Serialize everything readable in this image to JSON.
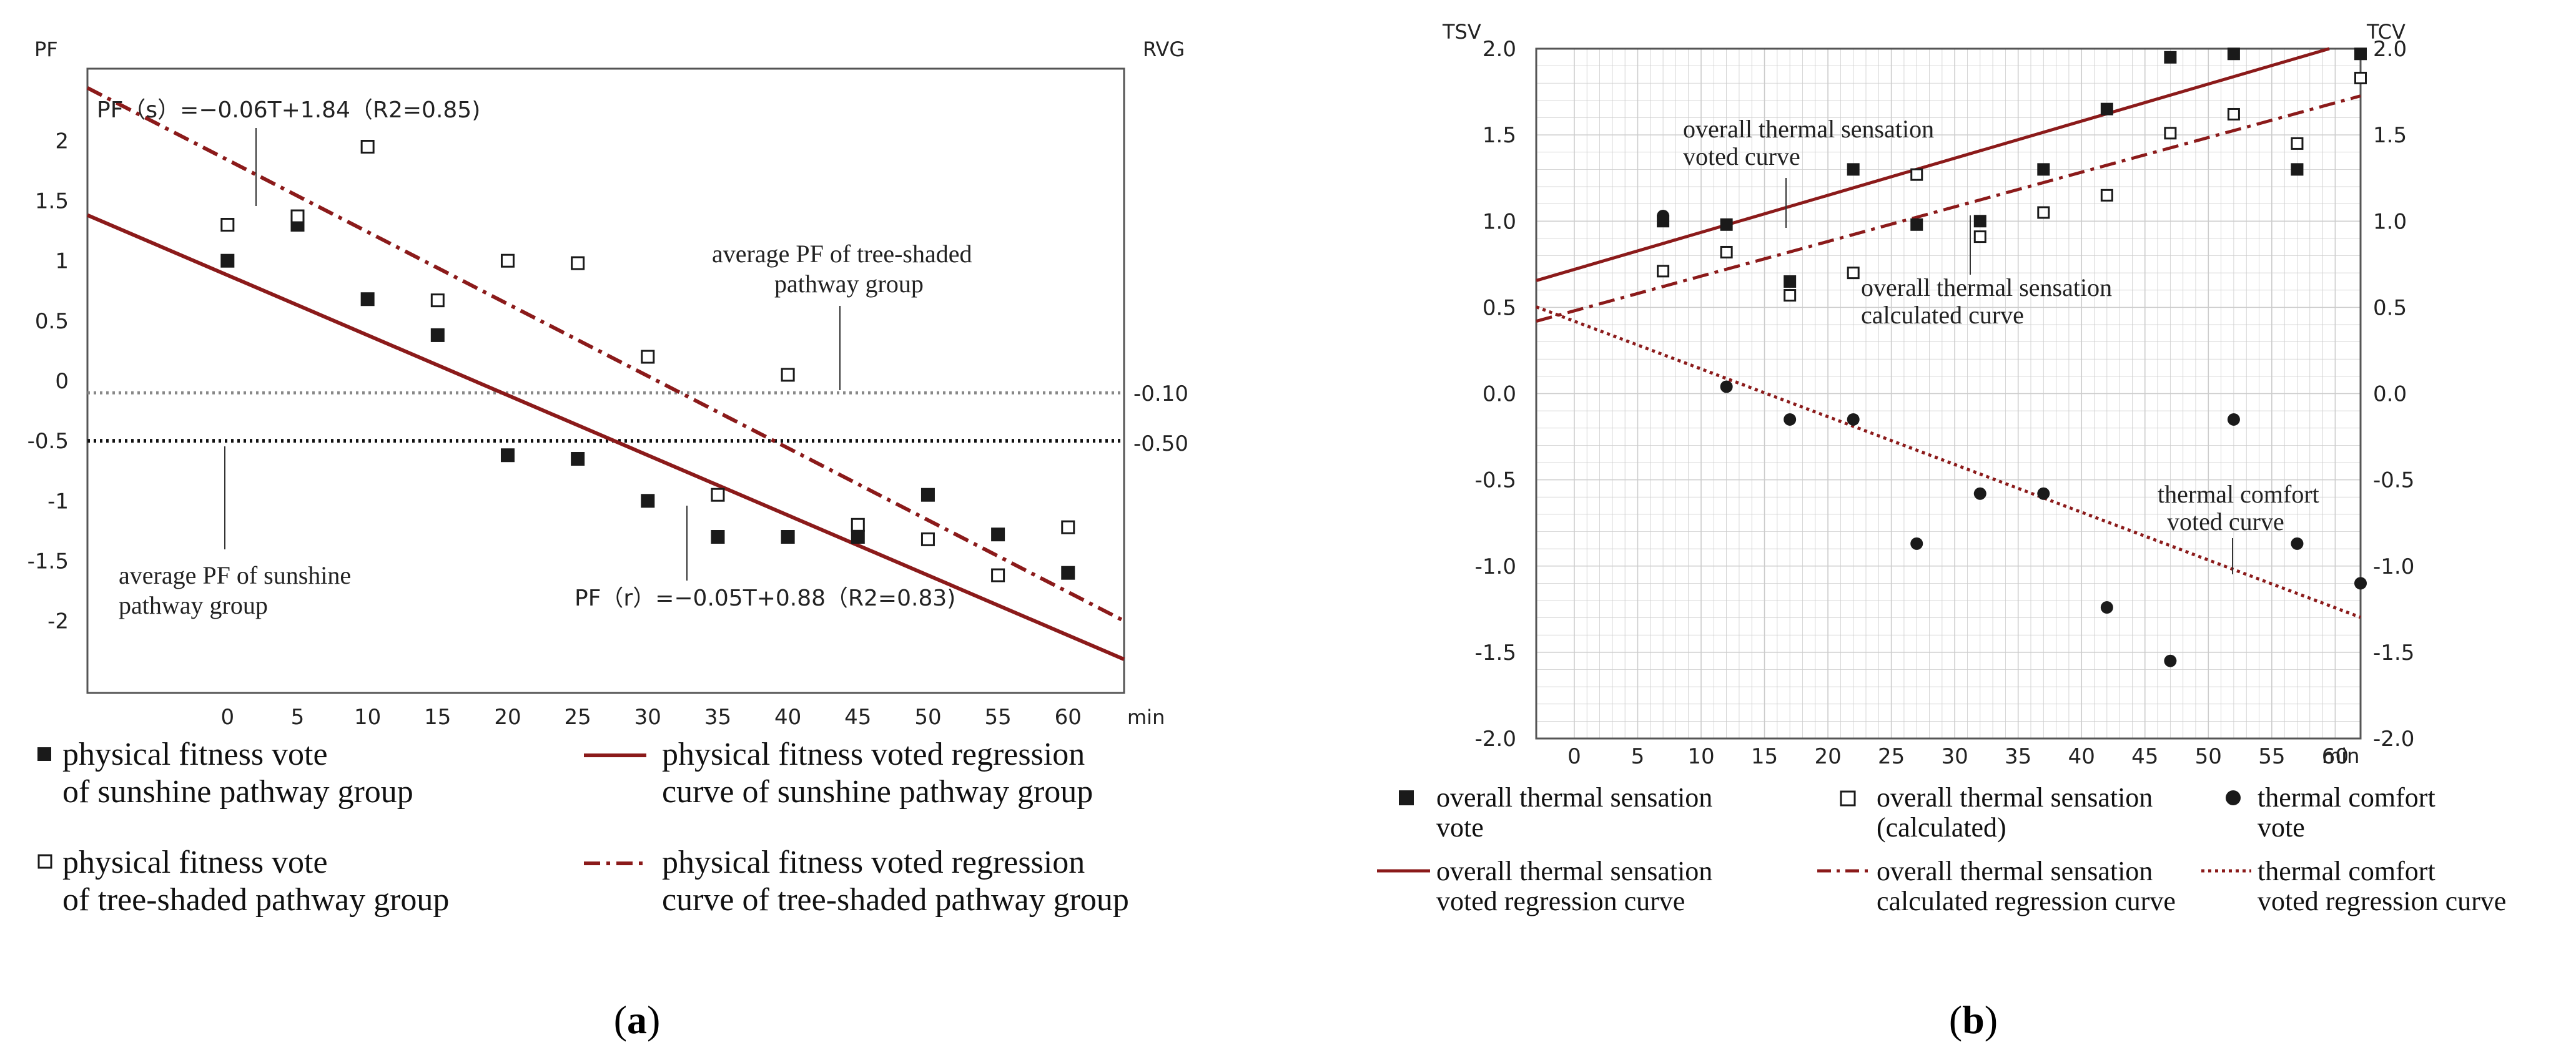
{
  "colors": {
    "regression": "#8b1a1a",
    "grid": "#cccccc",
    "frame": "#555555",
    "marker": "#1a1a1a"
  },
  "chart_data": [
    {
      "id": "a",
      "type": "scatter",
      "caption_letter": "a",
      "ylabel_left": "PF",
      "ylabel_right": "RVG",
      "x_unit": "min",
      "x": [
        0,
        5,
        10,
        15,
        20,
        25,
        30,
        35,
        40,
        45,
        50,
        55,
        60
      ],
      "x_ticks": [
        "0",
        "5",
        "10",
        "15",
        "20",
        "25",
        "30",
        "35",
        "40",
        "45",
        "50",
        "55",
        "60"
      ],
      "y_ticks": [
        "2",
        "1.5",
        "1",
        "0.5",
        "0",
        "-0.5",
        "-1",
        "-1.5",
        "-2"
      ],
      "y_tick_values": [
        2,
        1.5,
        1,
        0.5,
        0,
        -0.5,
        -1,
        -1.5,
        -2
      ],
      "ylim": [
        -2.6,
        2.6
      ],
      "xlim": [
        -10,
        64
      ],
      "series": [
        {
          "name": "physical fitness vote of sunshine pathway group",
          "marker": "filled-square",
          "values": [
            1.0,
            1.3,
            0.68,
            0.38,
            -0.62,
            -0.65,
            -1.0,
            -1.3,
            -1.3,
            -1.3,
            -0.95,
            -1.28,
            -1.6
          ]
        },
        {
          "name": "physical fitness vote of tree-shaded pathway group",
          "marker": "open-square",
          "values": [
            1.3,
            1.37,
            1.95,
            0.67,
            1.0,
            0.98,
            0.2,
            -0.95,
            0.05,
            -1.2,
            -1.32,
            -1.62,
            -1.22
          ]
        }
      ],
      "regressions": [
        {
          "name": "physical fitness voted regression curve of sunshine pathway group",
          "style": "solid",
          "slope": -0.05,
          "intercept": 0.88,
          "x_from": -10,
          "x_to": 64
        },
        {
          "name": "physical fitness voted regression curve of tree-shaded pathway group",
          "style": "dash-dot",
          "slope": -0.06,
          "intercept": 1.84,
          "x_from": -10,
          "x_to": 64
        }
      ],
      "reference_lines": [
        {
          "value": -0.1,
          "label": "-0.10",
          "style": "dotted-grey"
        },
        {
          "value": -0.5,
          "label": "-0.50",
          "style": "dotted-black"
        }
      ],
      "annotations": {
        "eq_tree": "PF（s）=−0.06T+1.84（R2=0.85)",
        "eq_sun": "PF（r）=−0.05T+0.88（R2=0.83)",
        "avg_tree_1": "average PF of tree-shaded",
        "avg_tree_2": "pathway group",
        "avg_sun_1": "average PF of sunshine",
        "avg_sun_2": "pathway group"
      },
      "legend": {
        "sun_vote_1": "physical fitness vote",
        "sun_vote_2": "of sunshine pathway group",
        "tree_vote_1": "physical fitness vote",
        "tree_vote_2": "of tree-shaded pathway group",
        "sun_reg_1": "physical fitness voted regression",
        "sun_reg_2": "curve of sunshine pathway group",
        "tree_reg_1": "physical fitness voted regression",
        "tree_reg_2": "curve of tree-shaded pathway group"
      }
    },
    {
      "id": "b",
      "type": "scatter",
      "caption_letter": "b",
      "ylabel_left": "TSV",
      "ylabel_right": "TCV",
      "x_unit": "min",
      "x": [
        7,
        12,
        17,
        22,
        27,
        32,
        37,
        42,
        47,
        52,
        57,
        62
      ],
      "x_ticks": [
        "0",
        "5",
        "10",
        "15",
        "20",
        "25",
        "30",
        "35",
        "40",
        "45",
        "50",
        "55",
        "60"
      ],
      "x_tick_values": [
        0,
        5,
        10,
        15,
        20,
        25,
        30,
        35,
        40,
        45,
        50,
        55,
        60
      ],
      "y_ticks": [
        "2.0",
        "1.5",
        "1.0",
        "0.5",
        "0.0",
        "-0.5",
        "-1.0",
        "-1.5",
        "-2.0"
      ],
      "y_tick_values": [
        2.0,
        1.5,
        1.0,
        0.5,
        0.0,
        -0.5,
        -1.0,
        -1.5,
        -2.0
      ],
      "ylim": [
        -2.0,
        2.0
      ],
      "xlim": [
        -3,
        62
      ],
      "series": [
        {
          "name": "overall thermal sensation vote",
          "marker": "filled-square",
          "values": [
            1.0,
            0.98,
            0.65,
            1.3,
            0.98,
            1.0,
            1.3,
            1.65,
            1.95,
            1.97,
            1.3,
            1.97
          ]
        },
        {
          "name": "overall thermal sensation (calculated)",
          "marker": "open-square",
          "values": [
            0.71,
            0.82,
            0.57,
            0.7,
            1.27,
            0.91,
            1.05,
            1.15,
            1.51,
            1.62,
            1.45,
            1.83
          ]
        },
        {
          "name": "thermal comfort vote",
          "marker": "filled-circle",
          "values": [
            1.03,
            0.04,
            -0.15,
            -0.15,
            -0.87,
            -0.58,
            -0.58,
            -1.24,
            -1.55,
            -0.15,
            -0.87,
            -1.1
          ]
        }
      ],
      "regressions": [
        {
          "name": "overall thermal sensation voted regression curve",
          "style": "solid",
          "slope": 0.0215,
          "intercept": 0.72,
          "x_from": -3,
          "x_to": 62
        },
        {
          "name": "overall thermal sensation calculated regression curve",
          "style": "dash-dot",
          "slope": 0.0201,
          "intercept": 0.48,
          "x_from": -3,
          "x_to": 62
        },
        {
          "name": "thermal comfort voted regression curve",
          "style": "dotted",
          "slope": -0.0277,
          "intercept": 0.42,
          "x_from": -3,
          "x_to": 62
        }
      ],
      "annotations": {
        "tsv_curve_1": "overall thermal sensation",
        "tsv_curve_2": "voted curve",
        "calc_curve_1": "overall thermal sensation",
        "calc_curve_2": "calculated curve",
        "tcv_curve_1": "thermal comfort",
        "tcv_curve_2": "voted curve"
      },
      "legend": {
        "tsv_vote_1": "overall thermal sensation",
        "tsv_vote_2": "vote",
        "calc_1": "overall thermal sensation",
        "calc_2": "(calculated)",
        "tcv_vote_1": "thermal comfort",
        "tcv_vote_2": "vote",
        "tsv_reg_1": "overall thermal sensation",
        "tsv_reg_2": "voted regression curve",
        "calc_reg_1": "overall thermal sensation",
        "calc_reg_2": "calculated regression curve",
        "tcv_reg_1": "thermal comfort",
        "tcv_reg_2": "voted regression curve"
      }
    }
  ],
  "captions": {
    "a_open": "(",
    "a_close": ")",
    "b_open": "(",
    "b_close": ")"
  }
}
